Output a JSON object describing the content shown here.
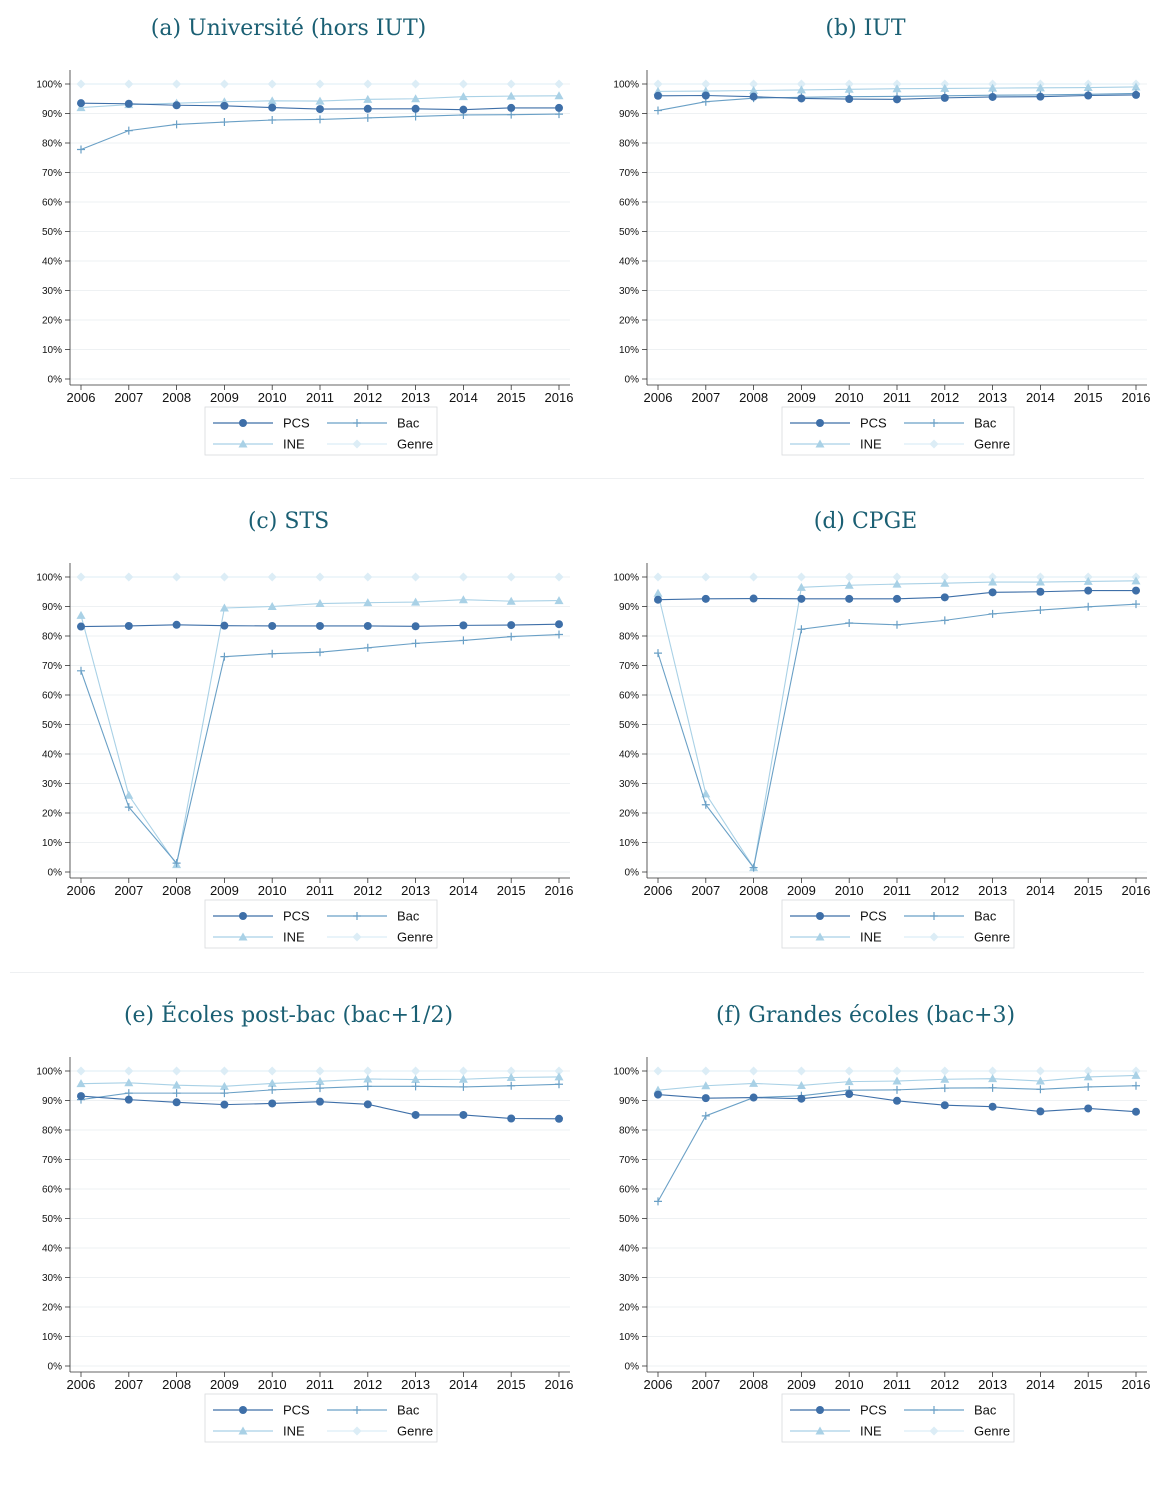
{
  "figure": {
    "years": [
      "2006",
      "2007",
      "2008",
      "2009",
      "2010",
      "2011",
      "2012",
      "2013",
      "2014",
      "2015",
      "2016"
    ],
    "yticks": [
      "0%",
      "10%",
      "20%",
      "30%",
      "40%",
      "50%",
      "60%",
      "70%",
      "80%",
      "90%",
      "100%"
    ],
    "legend": {
      "pcs": "PCS",
      "bac": "Bac",
      "ine": "INE",
      "genre": "Genre"
    },
    "colors": {
      "pcs": "#3e6fa8",
      "bac": "#6aa0c6",
      "ine": "#a9d1e6",
      "genre": "#dcedf6"
    }
  },
  "chart_data": [
    {
      "type": "line",
      "title": "(a) Université (hors IUT)",
      "x": [
        2006,
        2007,
        2008,
        2009,
        2010,
        2011,
        2012,
        2013,
        2014,
        2015,
        2016
      ],
      "ylim": [
        0,
        100
      ],
      "series": [
        {
          "name": "PCS",
          "values": [
            93.5,
            93.3,
            92.8,
            92.6,
            92.0,
            91.5,
            91.6,
            91.6,
            91.3,
            91.9,
            91.9
          ]
        },
        {
          "name": "Bac",
          "values": [
            77.8,
            84.2,
            86.3,
            87.1,
            87.8,
            88.0,
            88.5,
            89.0,
            89.5,
            89.6,
            89.8
          ]
        },
        {
          "name": "INE",
          "values": [
            92.0,
            93.0,
            93.5,
            94.0,
            94.3,
            94.2,
            94.8,
            95.0,
            95.7,
            95.9,
            96.0
          ]
        },
        {
          "name": "Genre",
          "values": [
            100,
            100,
            100,
            100,
            100,
            100,
            100,
            100,
            100,
            100,
            100
          ]
        }
      ]
    },
    {
      "type": "line",
      "title": "(b) IUT",
      "x": [
        2006,
        2007,
        2008,
        2009,
        2010,
        2011,
        2012,
        2013,
        2014,
        2015,
        2016
      ],
      "ylim": [
        0,
        100
      ],
      "series": [
        {
          "name": "PCS",
          "values": [
            96.0,
            96.1,
            95.7,
            95.1,
            94.9,
            94.8,
            95.3,
            95.6,
            95.7,
            96.1,
            96.3
          ]
        },
        {
          "name": "Bac",
          "values": [
            91.0,
            94.0,
            95.2,
            95.5,
            95.7,
            95.8,
            96.0,
            96.2,
            96.3,
            96.5,
            96.8
          ]
        },
        {
          "name": "INE",
          "values": [
            97.5,
            97.6,
            97.8,
            98.0,
            98.2,
            98.4,
            98.5,
            98.6,
            98.7,
            98.8,
            99.0
          ]
        },
        {
          "name": "Genre",
          "values": [
            100,
            100,
            100,
            100,
            100,
            100,
            100,
            100,
            100,
            100,
            100
          ]
        }
      ]
    },
    {
      "type": "line",
      "title": "(c) STS",
      "x": [
        2006,
        2007,
        2008,
        2009,
        2010,
        2011,
        2012,
        2013,
        2014,
        2015,
        2016
      ],
      "ylim": [
        0,
        100
      ],
      "series": [
        {
          "name": "PCS",
          "values": [
            83.2,
            83.4,
            83.8,
            83.5,
            83.4,
            83.4,
            83.4,
            83.3,
            83.6,
            83.7,
            84.0
          ]
        },
        {
          "name": "Bac",
          "values": [
            68.2,
            22.0,
            3.0,
            73.0,
            74.0,
            74.5,
            76.0,
            77.5,
            78.5,
            79.8,
            80.5
          ]
        },
        {
          "name": "INE",
          "values": [
            87.0,
            26.0,
            2.5,
            89.5,
            90.0,
            91.0,
            91.3,
            91.5,
            92.3,
            91.8,
            92.0
          ]
        },
        {
          "name": "Genre",
          "values": [
            100,
            100,
            100,
            100,
            100,
            100,
            100,
            100,
            100,
            100,
            100
          ]
        }
      ]
    },
    {
      "type": "line",
      "title": "(d) CPGE",
      "x": [
        2006,
        2007,
        2008,
        2009,
        2010,
        2011,
        2012,
        2013,
        2014,
        2015,
        2016
      ],
      "ylim": [
        0,
        100
      ],
      "series": [
        {
          "name": "PCS",
          "values": [
            92.3,
            92.6,
            92.7,
            92.6,
            92.6,
            92.6,
            93.1,
            94.8,
            95.0,
            95.4,
            95.4
          ]
        },
        {
          "name": "Bac",
          "values": [
            74.2,
            22.8,
            1.5,
            82.3,
            84.4,
            83.8,
            85.3,
            87.5,
            88.8,
            89.9,
            90.8
          ]
        },
        {
          "name": "INE",
          "values": [
            94.5,
            26.5,
            1.5,
            96.5,
            97.2,
            97.6,
            97.9,
            98.3,
            98.3,
            98.5,
            98.7
          ]
        },
        {
          "name": "Genre",
          "values": [
            100,
            100,
            100,
            100,
            100,
            100,
            100,
            100,
            100,
            100,
            100
          ]
        }
      ]
    },
    {
      "type": "line",
      "title": "(e) Écoles post-bac (bac+1/2)",
      "x": [
        2006,
        2007,
        2008,
        2009,
        2010,
        2011,
        2012,
        2013,
        2014,
        2015,
        2016
      ],
      "ylim": [
        0,
        100
      ],
      "series": [
        {
          "name": "PCS",
          "values": [
            91.5,
            90.3,
            89.4,
            88.6,
            89.0,
            89.6,
            88.7,
            85.1,
            85.1,
            83.9,
            83.8
          ]
        },
        {
          "name": "Bac",
          "values": [
            90.3,
            92.5,
            92.5,
            92.5,
            93.6,
            94.2,
            94.8,
            94.8,
            94.6,
            95.0,
            95.5
          ]
        },
        {
          "name": "INE",
          "values": [
            95.7,
            96.0,
            95.2,
            94.8,
            95.8,
            96.5,
            97.3,
            97.1,
            97.2,
            97.8,
            98.0
          ]
        },
        {
          "name": "Genre",
          "values": [
            100,
            100,
            100,
            100,
            100,
            100,
            100,
            100,
            100,
            100,
            100
          ]
        }
      ]
    },
    {
      "type": "line",
      "title": "(f) Grandes écoles (bac+3)",
      "x": [
        2006,
        2007,
        2008,
        2009,
        2010,
        2011,
        2012,
        2013,
        2014,
        2015,
        2016
      ],
      "ylim": [
        0,
        100
      ],
      "series": [
        {
          "name": "PCS",
          "values": [
            92.0,
            90.8,
            91.0,
            90.6,
            92.2,
            89.9,
            88.4,
            87.9,
            86.3,
            87.3,
            86.2
          ]
        },
        {
          "name": "Bac",
          "values": [
            55.8,
            84.8,
            91.0,
            91.6,
            93.5,
            93.6,
            94.2,
            94.3,
            93.8,
            94.6,
            95.0
          ]
        },
        {
          "name": "INE",
          "values": [
            93.5,
            95.0,
            95.8,
            95.1,
            96.4,
            96.6,
            97.2,
            97.4,
            96.6,
            98.0,
            98.5
          ]
        },
        {
          "name": "Genre",
          "values": [
            100,
            100,
            100,
            100,
            100,
            100,
            100,
            100,
            100,
            100,
            100
          ]
        }
      ]
    }
  ]
}
